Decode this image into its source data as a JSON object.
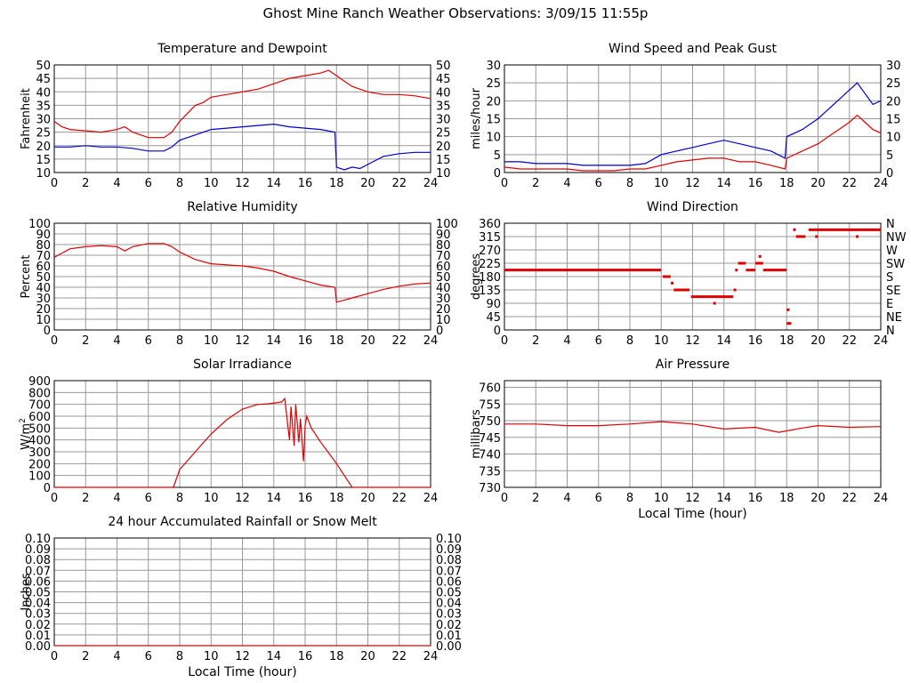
{
  "title": "Ghost Mine Ranch Weather Observations: 3/09/15 11:55p",
  "chart_data": [
    {
      "id": "temp",
      "type": "line",
      "title": "Temperature and Dewpoint",
      "ylabel": "Fahrenheit",
      "xlabel": "",
      "xlim": [
        0,
        24
      ],
      "xticks": [
        0,
        2,
        4,
        6,
        8,
        10,
        12,
        14,
        16,
        18,
        20,
        22,
        24
      ],
      "ylim": [
        10,
        50
      ],
      "yticks": [
        10,
        15,
        20,
        25,
        30,
        35,
        40,
        45,
        50
      ],
      "right_ticks": [
        "10",
        "15",
        "20",
        "25",
        "30",
        "35",
        "40",
        "45",
        "50"
      ],
      "grid": true,
      "series": [
        {
          "color": "#e00000",
          "x": [
            0,
            0.5,
            1,
            2,
            3,
            4,
            4.5,
            5,
            6,
            7,
            7.5,
            8,
            8.5,
            9,
            9.5,
            10,
            11,
            12,
            13,
            14,
            15,
            16,
            17,
            17.5,
            18,
            18.5,
            19,
            20,
            21,
            22,
            23,
            24
          ],
          "y": [
            29,
            27,
            26,
            25.5,
            25,
            26,
            27,
            25,
            23,
            23,
            25,
            29,
            32,
            35,
            36,
            38,
            39,
            40,
            41,
            43,
            45,
            46,
            47,
            48,
            46,
            44,
            42,
            40,
            39,
            39,
            38.5,
            37.5
          ]
        },
        {
          "color": "#0000cc",
          "x": [
            0,
            1,
            2,
            3,
            4,
            5,
            6,
            7,
            7.5,
            8,
            9,
            10,
            11,
            12,
            13,
            14,
            15,
            16,
            17,
            17.9,
            18,
            18.5,
            19,
            19.5,
            20,
            21,
            22,
            23,
            24
          ],
          "y": [
            19.5,
            19.5,
            20,
            19.5,
            19.5,
            19,
            18,
            18,
            19.5,
            22,
            24,
            26,
            26.5,
            27,
            27.5,
            28,
            27,
            26.5,
            26,
            25,
            12,
            11,
            12,
            11.5,
            13,
            16,
            17,
            17.5,
            17.5
          ]
        }
      ]
    },
    {
      "id": "wind",
      "type": "line",
      "title": "Wind Speed and Peak Gust",
      "ylabel": "miles/hour",
      "xlabel": "",
      "xlim": [
        0,
        24
      ],
      "xticks": [
        0,
        2,
        4,
        6,
        8,
        10,
        12,
        14,
        16,
        18,
        20,
        22,
        24
      ],
      "ylim": [
        0,
        30
      ],
      "yticks": [
        0,
        5,
        10,
        15,
        20,
        25,
        30
      ],
      "right_ticks": [
        "0",
        "5",
        "10",
        "15",
        "20",
        "25",
        "30"
      ],
      "grid": true,
      "series": [
        {
          "color": "#0000cc",
          "x": [
            0,
            1,
            2,
            3,
            4,
            5,
            6,
            7,
            8,
            9,
            10,
            11,
            12,
            13,
            14,
            15,
            16,
            17,
            17.9,
            18,
            19,
            20,
            21,
            22,
            22.5,
            23,
            23.5,
            24
          ],
          "y": [
            3,
            3,
            2.5,
            2.5,
            2.5,
            2,
            2,
            2,
            2,
            2.5,
            5,
            6,
            7,
            8,
            9,
            8,
            7,
            6,
            4,
            10,
            12,
            15,
            19,
            23,
            25,
            22,
            19,
            20
          ]
        },
        {
          "color": "#e00000",
          "x": [
            0,
            1,
            2,
            3,
            4,
            5,
            6,
            7,
            8,
            9,
            10,
            11,
            12,
            13,
            14,
            15,
            16,
            17,
            17.9,
            18,
            19,
            20,
            21,
            22,
            22.5,
            23,
            23.5,
            24
          ],
          "y": [
            1.5,
            1,
            1,
            1,
            1,
            0.5,
            0.5,
            0.5,
            1,
            1,
            2,
            3,
            3.5,
            4,
            4,
            3,
            3,
            2,
            1,
            4,
            6,
            8,
            11,
            14,
            16,
            14,
            12,
            11
          ]
        }
      ]
    },
    {
      "id": "rh",
      "type": "line",
      "title": "Relative Humidity",
      "ylabel": "Percent",
      "xlabel": "",
      "xlim": [
        0,
        24
      ],
      "xticks": [
        0,
        2,
        4,
        6,
        8,
        10,
        12,
        14,
        16,
        18,
        20,
        22,
        24
      ],
      "ylim": [
        0,
        100
      ],
      "yticks": [
        0,
        10,
        20,
        30,
        40,
        50,
        60,
        70,
        80,
        90,
        100
      ],
      "right_ticks": [
        "0",
        "10",
        "20",
        "30",
        "40",
        "50",
        "60",
        "70",
        "80",
        "90",
        "100"
      ],
      "grid": true,
      "series": [
        {
          "color": "#e00000",
          "x": [
            0,
            0.5,
            1,
            2,
            3,
            4,
            4.5,
            5,
            6,
            7,
            7.5,
            8,
            9,
            10,
            11,
            12,
            13,
            14,
            15,
            16,
            17,
            17.9,
            18,
            18.5,
            19,
            20,
            21,
            22,
            23,
            24
          ],
          "y": [
            68,
            72,
            76,
            78,
            79,
            78,
            74,
            78,
            81,
            81,
            78,
            73,
            66,
            62,
            61,
            60,
            58,
            55,
            50,
            46,
            42,
            40,
            26,
            28,
            30,
            34,
            38,
            41,
            43,
            44
          ]
        }
      ]
    },
    {
      "id": "wdir",
      "type": "scatter",
      "title": "Wind Direction",
      "ylabel": "degrees",
      "xlabel": "",
      "xlim": [
        0,
        24
      ],
      "xticks": [
        0,
        2,
        4,
        6,
        8,
        10,
        12,
        14,
        16,
        18,
        20,
        22,
        24
      ],
      "ylim": [
        0,
        360
      ],
      "yticks": [
        0,
        45,
        90,
        135,
        180,
        225,
        270,
        315,
        360
      ],
      "right_ticks": [
        "N",
        "NE",
        "E",
        "SE",
        "S",
        "SW",
        "W",
        "NW",
        "N"
      ],
      "grid": true,
      "segments": [
        {
          "x0": 0,
          "x1": 10,
          "y": 202
        },
        {
          "x0": 10.1,
          "x1": 10.6,
          "y": 180
        },
        {
          "x0": 10.8,
          "x1": 11.8,
          "y": 135
        },
        {
          "x0": 11.9,
          "x1": 13.5,
          "y": 112
        },
        {
          "x0": 13.5,
          "x1": 14.6,
          "y": 112
        },
        {
          "x0": 14.9,
          "x1": 15.4,
          "y": 225
        },
        {
          "x0": 15.4,
          "x1": 16.0,
          "y": 202
        },
        {
          "x0": 16.0,
          "x1": 16.5,
          "y": 225
        },
        {
          "x0": 16.5,
          "x1": 18.0,
          "y": 202
        },
        {
          "x0": 18.0,
          "x1": 18.3,
          "y": 22
        },
        {
          "x0": 18.6,
          "x1": 19.2,
          "y": 315
        },
        {
          "x0": 19.4,
          "x1": 24,
          "y": 338
        }
      ],
      "points": [
        {
          "x": 10.7,
          "y": 158
        },
        {
          "x": 13.4,
          "y": 90
        },
        {
          "x": 14.7,
          "y": 135
        },
        {
          "x": 14.8,
          "y": 202
        },
        {
          "x": 16.3,
          "y": 248
        },
        {
          "x": 18.1,
          "y": 68
        },
        {
          "x": 18.5,
          "y": 338
        },
        {
          "x": 19.9,
          "y": 315
        },
        {
          "x": 22.5,
          "y": 315
        }
      ]
    },
    {
      "id": "solar",
      "type": "line",
      "title": "Solar Irradiance",
      "ylabel": "W/m",
      "ylabel_sup": "2",
      "xlabel": "",
      "xlim": [
        0,
        24
      ],
      "xticks": [
        0,
        2,
        4,
        6,
        8,
        10,
        12,
        14,
        16,
        18,
        20,
        22,
        24
      ],
      "ylim": [
        0,
        900
      ],
      "yticks": [
        0,
        100,
        200,
        300,
        400,
        500,
        600,
        700,
        800,
        900
      ],
      "grid": true,
      "series": [
        {
          "color": "#e00000",
          "x": [
            0,
            7.6,
            8,
            9,
            10,
            11,
            12,
            13,
            13.7,
            14.5,
            14.7,
            15,
            15.1,
            15.3,
            15.4,
            15.6,
            15.7,
            15.9,
            16.0,
            16.1,
            16.4,
            17,
            18,
            18.5,
            19,
            20,
            24
          ],
          "y": [
            0,
            0,
            150,
            300,
            450,
            570,
            660,
            700,
            705,
            720,
            750,
            400,
            680,
            350,
            700,
            380,
            580,
            220,
            520,
            600,
            500,
            380,
            200,
            100,
            0,
            0,
            0
          ]
        }
      ]
    },
    {
      "id": "pressure",
      "type": "line",
      "title": "Air Pressure",
      "ylabel": "millibars",
      "xlabel": "Local Time (hour)",
      "xlim": [
        0,
        24
      ],
      "xticks": [
        0,
        2,
        4,
        6,
        8,
        10,
        12,
        14,
        16,
        18,
        20,
        22,
        24
      ],
      "ylim": [
        730,
        762
      ],
      "yticks": [
        730,
        735,
        740,
        745,
        750,
        755,
        760
      ],
      "grid": true,
      "series": [
        {
          "color": "#e00000",
          "x": [
            0,
            2,
            4,
            6,
            8,
            10,
            12,
            14,
            16,
            17.5,
            19,
            20,
            22,
            24
          ],
          "y": [
            749,
            749,
            748.5,
            748.5,
            749,
            749.7,
            749,
            747.5,
            748,
            746.5,
            747.8,
            748.5,
            748,
            748.2
          ]
        }
      ]
    },
    {
      "id": "rain",
      "type": "line",
      "title": "24 hour Accumulated Rainfall or Snow Melt",
      "ylabel": "Inches",
      "xlabel": "Local Time (hour)",
      "xlim": [
        0,
        24
      ],
      "xticks": [
        0,
        2,
        4,
        6,
        8,
        10,
        12,
        14,
        16,
        18,
        20,
        22,
        24
      ],
      "ylim": [
        0,
        0.1
      ],
      "yticks": [
        0,
        0.01,
        0.02,
        0.03,
        0.04,
        0.05,
        0.06,
        0.07,
        0.08,
        0.09,
        0.1
      ],
      "ytick_labels": [
        "0.00",
        "0.01",
        "0.02",
        "0.03",
        "0.04",
        "0.05",
        "0.06",
        "0.07",
        "0.08",
        "0.09",
        "0.10"
      ],
      "right_ticks": [
        "0.00",
        "0.01",
        "0.02",
        "0.03",
        "0.04",
        "0.05",
        "0.06",
        "0.07",
        "0.08",
        "0.09",
        "0.10"
      ],
      "grid": true,
      "series": [
        {
          "color": "#e00000",
          "x": [
            0,
            24
          ],
          "y": [
            0,
            0
          ]
        }
      ]
    }
  ]
}
